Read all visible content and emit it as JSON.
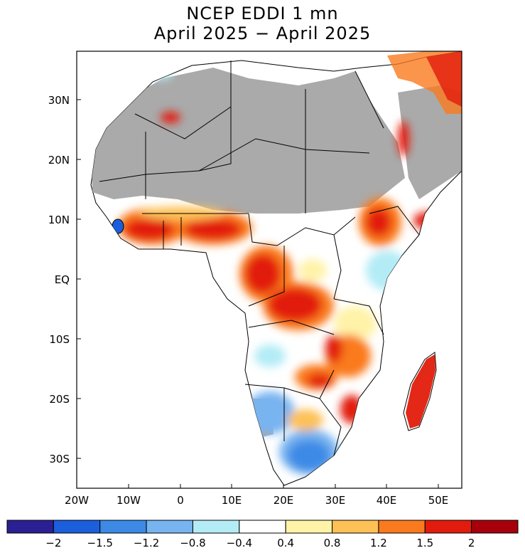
{
  "title": {
    "line1": "NCEP EDDI 1 mn",
    "line2": "April 2025 − April 2025"
  },
  "axes": {
    "lat_labels": [
      "30N",
      "20N",
      "10N",
      "EQ",
      "10S",
      "20S",
      "30S"
    ],
    "lon_labels": [
      "20W",
      "10W",
      "0",
      "10E",
      "20E",
      "30E",
      "40E",
      "50E"
    ]
  },
  "colorbar": {
    "labels": [
      "−2",
      "−1.5",
      "−1.2",
      "−0.8",
      "−0.4",
      "0.4",
      "0.8",
      "1.2",
      "1.5",
      "2"
    ],
    "colors": [
      "#2b1f94",
      "#1c5fdc",
      "#3c8ae6",
      "#78b4f0",
      "#b4ecf6",
      "#ffffff",
      "#fff3a8",
      "#fdc156",
      "#fa7a1e",
      "#e21c0c",
      "#a8000a"
    ]
  },
  "map": {
    "masked_color": "#aaaaaa",
    "ocean_color": "#ffffff"
  }
}
